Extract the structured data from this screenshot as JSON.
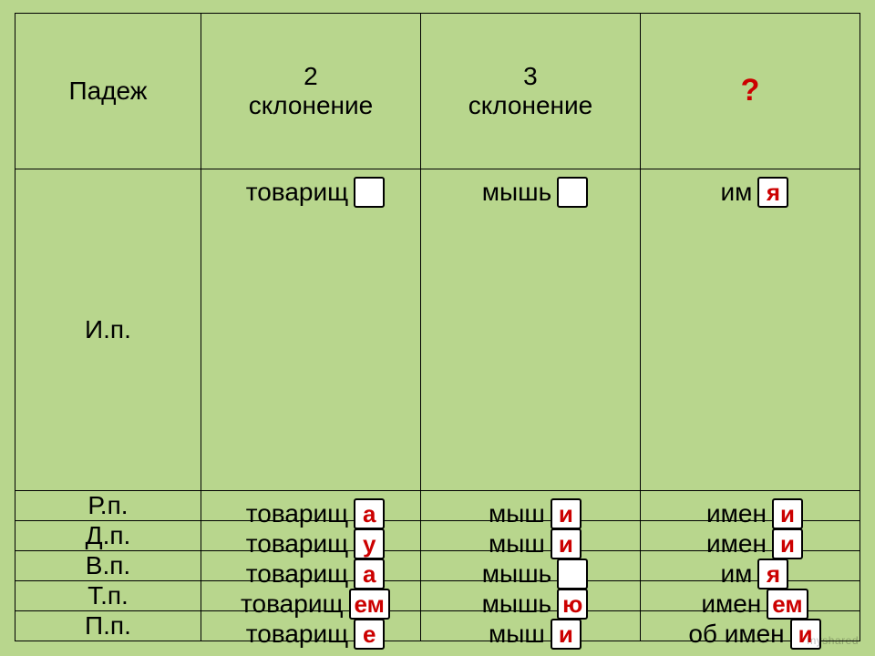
{
  "colors": {
    "background": "#b8d68d",
    "border": "#000000",
    "text": "#000000",
    "accent_red": "#cc0000",
    "box_fill": "#ffffff"
  },
  "typography": {
    "header_fontsize": 28,
    "case_fontsize": 30,
    "stem_fontsize": 28,
    "ending_fontsize": 26,
    "question_fontsize": 34,
    "font_family": "Arial"
  },
  "table": {
    "type": "table",
    "column_widths_pct": [
      22,
      26,
      26,
      26
    ],
    "border_width": 1.5
  },
  "headers": {
    "case": "Падеж",
    "col2_l1": "2",
    "col2_l2": "склонение",
    "col3_l1": "3",
    "col3_l2": "склонение",
    "col4": "?"
  },
  "rows": [
    {
      "case": "И.п.",
      "c2": {
        "stem": "товарищ",
        "ending": "",
        "red": false
      },
      "c3": {
        "stem": "мышь",
        "ending": "",
        "red": false
      },
      "c4": {
        "stem": "им",
        "ending": "я",
        "red": true
      }
    },
    {
      "case": "Р.п.",
      "c2": {
        "stem": "товарищ",
        "ending": "а",
        "red": true
      },
      "c3": {
        "stem": "мыш",
        "ending": "и",
        "red": true
      },
      "c4": {
        "stem": "имен",
        "ending": "и",
        "red": true
      }
    },
    {
      "case": "Д.п.",
      "c2": {
        "stem": "товарищ",
        "ending": "у",
        "red": true
      },
      "c3": {
        "stem": "мыш",
        "ending": "и",
        "red": true
      },
      "c4": {
        "stem": "имен",
        "ending": "и",
        "red": true
      }
    },
    {
      "case": "В.п.",
      "c2": {
        "stem": "товарищ",
        "ending": "а",
        "red": true
      },
      "c3": {
        "stem": "мышь",
        "ending": "",
        "red": false
      },
      "c4": {
        "stem": "им",
        "ending": "я",
        "red": true
      }
    },
    {
      "case": "Т.п.",
      "c2": {
        "stem": "товарищ",
        "ending": "ем",
        "red": true
      },
      "c3": {
        "stem": "мышь",
        "ending": "ю",
        "red": true
      },
      "c4": {
        "stem": "имен",
        "ending": "ем",
        "red": true
      }
    },
    {
      "case": "П.п.",
      "c2": {
        "stem": "товарищ",
        "ending": "е",
        "red": true
      },
      "c3": {
        "stem": "мыш",
        "ending": "и",
        "red": true
      },
      "c4": {
        "stem": "об имен",
        "ending": "и",
        "red": true
      }
    }
  ],
  "watermark": "myshared"
}
